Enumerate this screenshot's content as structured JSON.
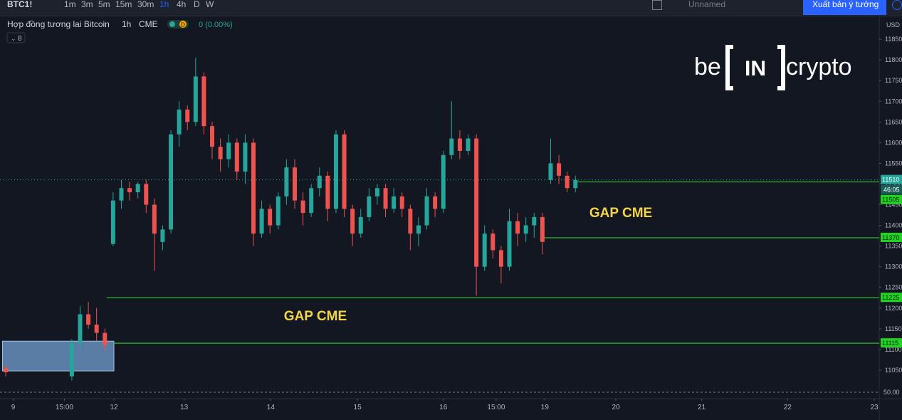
{
  "toolbar": {
    "symbol": "BTC1!",
    "intervals": [
      "1m",
      "3m",
      "5m",
      "15m",
      "30m",
      "1h",
      "4h",
      "D",
      "W"
    ],
    "active": "1h",
    "layout_name": "Unnamed",
    "publish": "Xuất bản ý tưởng"
  },
  "legend": {
    "title": "Hợp đồng tương lai Bitcoin",
    "interval": "1h",
    "exchange": "CME",
    "badge": "D",
    "change": "0 (0.00%)",
    "indicators": "8"
  },
  "logo": {
    "left": "be",
    "middle": "IN",
    "right": "crypto"
  },
  "chart_data": {
    "type": "candlestick",
    "currency": "USD",
    "up_color": "#26a69a",
    "down_color": "#ef5350",
    "ylim": [
      10981,
      11907
    ],
    "yticks": [
      11050,
      11100,
      11150,
      11200,
      11250,
      11300,
      11350,
      11400,
      11450,
      11500,
      11550,
      11600,
      11650,
      11700,
      11750,
      11800,
      11850
    ],
    "xlim": [
      -0.7,
      105.8
    ],
    "xticks": [
      {
        "value": 0.9,
        "label": "9"
      },
      {
        "value": 7.1,
        "label": "15:00"
      },
      {
        "value": 13.1,
        "label": "12"
      },
      {
        "value": 21.6,
        "label": "13"
      },
      {
        "value": 32.1,
        "label": "14"
      },
      {
        "value": 42.6,
        "label": "15"
      },
      {
        "value": 53,
        "label": "16"
      },
      {
        "value": 59.4,
        "label": "15:00"
      },
      {
        "value": 65.3,
        "label": "19"
      },
      {
        "value": 73.9,
        "label": "20"
      },
      {
        "value": 84.3,
        "label": "21"
      },
      {
        "value": 94.7,
        "label": "22"
      },
      {
        "value": 105.2,
        "label": "23"
      }
    ],
    "open": [
      11055,
      null,
      null,
      null,
      null,
      null,
      null,
      null,
      11035,
      11115,
      11185,
      11160,
      11140,
      11355,
      11460,
      11490,
      11480,
      11500,
      11450,
      11360,
      11390,
      11620,
      11680,
      11650,
      11760,
      11640,
      11590,
      11560,
      11600,
      11530,
      11600,
      11380,
      11440,
      11400,
      11470,
      11540,
      11460,
      11430,
      11490,
      11520,
      11440,
      11620,
      11440,
      11380,
      11420,
      11470,
      11490,
      11440,
      11470,
      11440,
      11380,
      11400,
      11470,
      11440,
      11570,
      11610,
      11580,
      11610,
      11300,
      11380,
      11340,
      11300,
      11410,
      11380,
      11400,
      11420,
      11510,
      11550,
      11520,
      11490
    ],
    "high": [
      11065,
      null,
      null,
      null,
      null,
      null,
      null,
      null,
      11125,
      11205,
      11215,
      11200,
      11150,
      11480,
      11510,
      11505,
      11505,
      11510,
      11465,
      11400,
      11630,
      11700,
      11690,
      11805,
      11770,
      11650,
      11610,
      11620,
      11610,
      11620,
      11610,
      11460,
      11450,
      11480,
      11560,
      11560,
      11480,
      11500,
      11540,
      11530,
      11630,
      11630,
      11450,
      11440,
      11490,
      11500,
      11500,
      11490,
      11480,
      11450,
      11420,
      11490,
      11480,
      11580,
      11700,
      11630,
      11620,
      11620,
      11400,
      11390,
      11350,
      11440,
      11430,
      11420,
      11430,
      11430,
      11610,
      11570,
      11530,
      11520
    ],
    "low": [
      11035,
      null,
      null,
      null,
      null,
      null,
      null,
      null,
      11025,
      11100,
      11150,
      11120,
      11095,
      11350,
      11440,
      11460,
      11465,
      11430,
      11290,
      11340,
      11380,
      11590,
      11630,
      11640,
      11620,
      11560,
      11530,
      11540,
      11510,
      11500,
      11350,
      11370,
      11380,
      11390,
      11450,
      11440,
      11400,
      11420,
      11470,
      11410,
      11430,
      11420,
      11350,
      11370,
      11410,
      11450,
      11420,
      11430,
      11420,
      11340,
      11350,
      11390,
      11420,
      11430,
      11560,
      11560,
      11570,
      11230,
      11290,
      11320,
      11260,
      11290,
      11350,
      11360,
      11370,
      11330,
      11500,
      11500,
      11480,
      11480
    ],
    "close": [
      11045,
      null,
      null,
      null,
      null,
      null,
      null,
      null,
      11115,
      11185,
      11160,
      11140,
      11110,
      11460,
      11490,
      11480,
      11500,
      11450,
      11380,
      11390,
      11620,
      11680,
      11650,
      11760,
      11640,
      11590,
      11560,
      11600,
      11530,
      11600,
      11380,
      11440,
      11400,
      11470,
      11540,
      11460,
      11430,
      11490,
      11520,
      11440,
      11620,
      11440,
      11380,
      11420,
      11470,
      11490,
      11440,
      11470,
      11440,
      11380,
      11400,
      11470,
      11440,
      11570,
      11610,
      11580,
      11610,
      11300,
      11380,
      11340,
      11300,
      11410,
      11380,
      11400,
      11420,
      11360,
      11550,
      11520,
      11490,
      11510
    ],
    "last_price": {
      "value": 11510,
      "label": "11510",
      "countdown": "46:05"
    },
    "price_lines": [
      {
        "value": 11505,
        "label": "11505",
        "x_start": 69.1
      },
      {
        "value": 11370,
        "label": "11370",
        "x_start": 64.8
      },
      {
        "value": 11225,
        "label": "11225",
        "x_start": 12.2
      },
      {
        "value": 11115,
        "label": "11115",
        "x_start": 13.1
      }
    ],
    "zone": {
      "x": [
        -0.4,
        13.1
      ],
      "y": [
        11048,
        11120
      ]
    },
    "annotations": [
      {
        "text": "GAP CME",
        "x": 74.5,
        "y": 11432
      },
      {
        "text": "GAP CME",
        "x": 37.5,
        "y": 11182
      }
    ],
    "oscillator": {
      "level": {
        "value": 50,
        "label": "50.00"
      }
    }
  }
}
